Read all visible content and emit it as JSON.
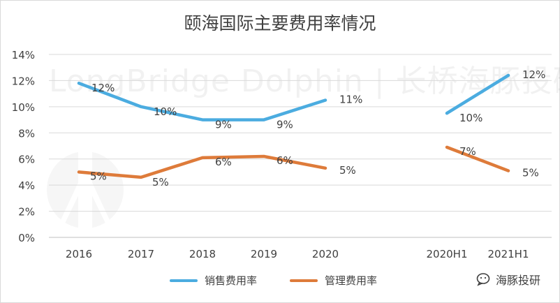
{
  "colors": {
    "sales": "#4BACE0",
    "mgmt": "#DE7B3A",
    "grid": "#d9d9d9",
    "text": "#404040"
  },
  "brand": {
    "name": "海豚投研",
    "icon": "wechat-bubble-icon"
  },
  "watermark": {
    "text": "LongBridge Dolphin | 长桥海豚投研"
  },
  "chart_data": {
    "type": "line",
    "title": "颐海国际主要费用率情况",
    "categories": [
      "2016",
      "2017",
      "2018",
      "2019",
      "2020",
      "",
      "2020H1",
      "2021H1"
    ],
    "yticks": [
      "0%",
      "2%",
      "4%",
      "6%",
      "8%",
      "10%",
      "12%",
      "14%"
    ],
    "ylim": [
      0,
      14
    ],
    "grid": true,
    "legend_position": "bottom",
    "series": [
      {
        "name": "销售费用率",
        "color": "#4BACE0",
        "segments": [
          [
            0,
            1,
            2,
            3,
            4
          ],
          [
            6,
            7
          ]
        ],
        "values": [
          11.8,
          10.0,
          9.0,
          9.0,
          10.5,
          null,
          9.5,
          12.4
        ],
        "labels": [
          "12%",
          "10%",
          "9%",
          "9%",
          "11%",
          "",
          "10%",
          "12%"
        ]
      },
      {
        "name": "管理费用率",
        "color": "#DE7B3A",
        "segments": [
          [
            0,
            1,
            2,
            3,
            4
          ],
          [
            6,
            7
          ]
        ],
        "values": [
          5.0,
          4.6,
          6.1,
          6.2,
          5.3,
          null,
          6.9,
          5.1
        ],
        "labels": [
          "5%",
          "5%",
          "6%",
          "6%",
          "5%",
          "",
          "7%",
          "5%"
        ]
      }
    ]
  }
}
